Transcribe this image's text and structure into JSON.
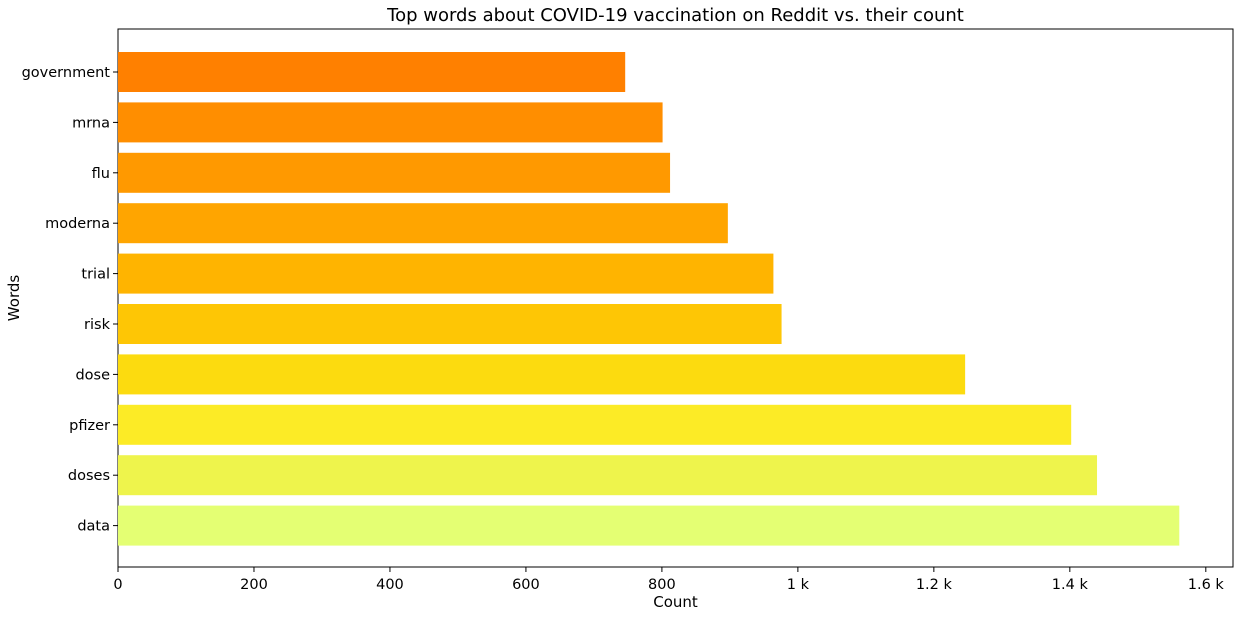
{
  "chart_data": {
    "type": "bar",
    "orientation": "horizontal",
    "title": "Top words about COVID-19 vaccination on Reddit vs. their count",
    "xlabel": "Count",
    "ylabel": "Words",
    "categories": [
      "government",
      "mrna",
      "flu",
      "moderna",
      "trial",
      "risk",
      "dose",
      "pfizer",
      "doses",
      "data"
    ],
    "values": [
      746,
      801,
      812,
      897,
      964,
      976,
      1246,
      1402,
      1440,
      1561
    ],
    "colors": [
      "#ff8000",
      "#ff8e00",
      "#ff9900",
      "#ffa500",
      "#ffb400",
      "#fec605",
      "#fcdb0f",
      "#fceb26",
      "#eef44c",
      "#e4ff73"
    ],
    "xlim": [
      0,
      1640
    ],
    "xticks": [
      {
        "value": 0,
        "label": "0"
      },
      {
        "value": 200,
        "label": "200"
      },
      {
        "value": 400,
        "label": "400"
      },
      {
        "value": 600,
        "label": "600"
      },
      {
        "value": 800,
        "label": "800"
      },
      {
        "value": 1000,
        "label": "1 k"
      },
      {
        "value": 1200,
        "label": "1.2 k"
      },
      {
        "value": 1400,
        "label": "1.4 k"
      },
      {
        "value": 1600,
        "label": "1.6 k"
      }
    ],
    "grid": false,
    "legend": "none"
  }
}
